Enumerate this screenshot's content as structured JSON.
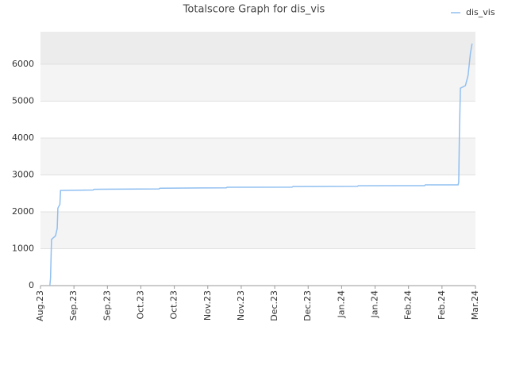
{
  "chart_data": {
    "type": "line",
    "title": "Totalscore Graph for dis_vis",
    "series": [
      {
        "name": "dis_vis",
        "color": "#90bff0",
        "x": [
          0.28,
          0.3,
          0.33,
          0.45,
          0.5,
          0.52,
          0.58,
          0.6,
          1.57,
          1.6,
          3.54,
          3.57,
          5.55,
          5.58,
          7.52,
          7.55,
          9.47,
          9.5,
          11.48,
          11.5,
          12.48,
          12.5,
          12.52,
          12.55,
          12.7,
          12.78,
          12.85,
          12.9
        ],
        "values": [
          0,
          200,
          1250,
          1350,
          1550,
          2100,
          2200,
          2580,
          2590,
          2610,
          2620,
          2640,
          2650,
          2665,
          2670,
          2685,
          2690,
          2705,
          2710,
          2730,
          2730,
          2800,
          4100,
          5350,
          5420,
          5700,
          6300,
          6560
        ]
      }
    ],
    "xlim": [
      0,
      13
    ],
    "xticks": [
      {
        "value": 0,
        "label": "Aug.23"
      },
      {
        "value": 1,
        "label": "Sep.23"
      },
      {
        "value": 2,
        "label": "Sep.23"
      },
      {
        "value": 3,
        "label": "Oct.23"
      },
      {
        "value": 4,
        "label": "Oct.23"
      },
      {
        "value": 5,
        "label": "Nov.23"
      },
      {
        "value": 6,
        "label": "Nov.23"
      },
      {
        "value": 7,
        "label": "Dec.23"
      },
      {
        "value": 8,
        "label": "Dec.23"
      },
      {
        "value": 9,
        "label": "Jan.24"
      },
      {
        "value": 10,
        "label": "Jan.24"
      },
      {
        "value": 11,
        "label": "Feb.24"
      },
      {
        "value": 12,
        "label": "Feb.24"
      },
      {
        "value": 13,
        "label": "Mar.24"
      }
    ],
    "ylim": [
      0,
      6880
    ],
    "yticks": [
      0,
      1000,
      2000,
      3000,
      4000,
      5000,
      6000
    ],
    "grid": true,
    "legend": "top-right"
  }
}
